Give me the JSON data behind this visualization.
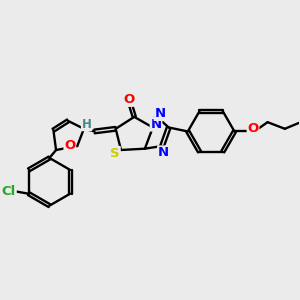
{
  "background_color": "#ebebeb",
  "atom_colors": {
    "O": "#ff0000",
    "N": "#0000ff",
    "S": "#cccc00",
    "Cl": "#22aa22",
    "C": "#000000",
    "H": "#448888"
  },
  "figsize": [
    3.0,
    3.0
  ],
  "dpi": 100,
  "bond_lw": 1.7,
  "double_sep": 0.007,
  "font_size": 9.0
}
